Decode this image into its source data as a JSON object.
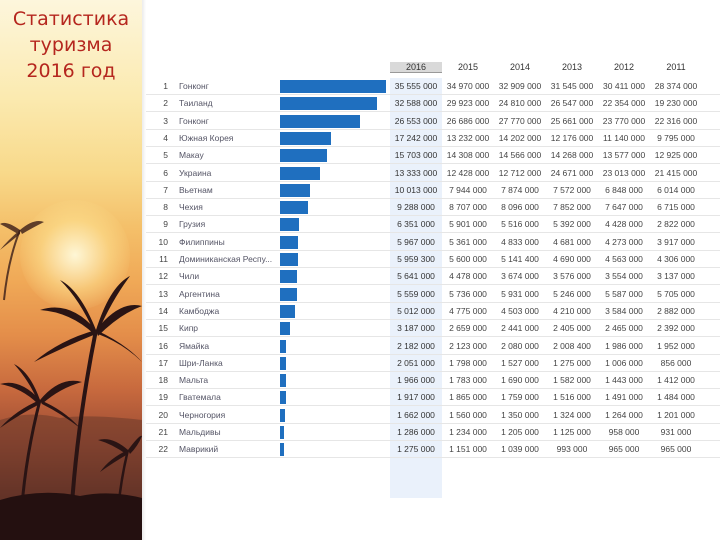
{
  "slide": {
    "title_lines": [
      "Статистика",
      "туризма",
      "2016 год"
    ]
  },
  "colors": {
    "title": "#b5261e",
    "bar": "#1f6fbf",
    "highlight_column": "#eaf1fb"
  },
  "table": {
    "year_headers": [
      "2016",
      "2015",
      "2014",
      "2013",
      "2012",
      "2011"
    ],
    "rows": [
      {
        "rank": "1",
        "country": "Гонконг",
        "bar_fraction": 1.0,
        "values": [
          "35 555 000",
          "34 970 000",
          "32 909 000",
          "31 545 000",
          "30 411 000",
          "28 374 000"
        ]
      },
      {
        "rank": "2",
        "country": "Таиланд",
        "bar_fraction": 0.917,
        "values": [
          "32 588 000",
          "29 923 000",
          "24 810 000",
          "26 547 000",
          "22 354 000",
          "19 230 000"
        ]
      },
      {
        "rank": "3",
        "country": "Гонконг",
        "bar_fraction": 0.756,
        "values": [
          "26 553 000",
          "26 686 000",
          "27 770 000",
          "25 661 000",
          "23 770 000",
          "22 316 000"
        ]
      },
      {
        "rank": "4",
        "country": "Южная Корея",
        "bar_fraction": 0.485,
        "values": [
          "17 242 000",
          "13 232 000",
          "14 202 000",
          "12 176 000",
          "11 140 000",
          "9 795 000"
        ]
      },
      {
        "rank": "5",
        "country": "Макау",
        "bar_fraction": 0.442,
        "values": [
          "15 703 000",
          "14 308 000",
          "14 566 000",
          "14 268 000",
          "13 577 000",
          "12 925 000"
        ]
      },
      {
        "rank": "6",
        "country": "Украина",
        "bar_fraction": 0.375,
        "values": [
          "13 333 000",
          "12 428 000",
          "12 712 000",
          "24 671 000",
          "23 013 000",
          "21 415 000"
        ]
      },
      {
        "rank": "7",
        "country": "Вьетнам",
        "bar_fraction": 0.282,
        "values": [
          "10 013 000",
          "7 944 000",
          "7 874 000",
          "7 572 000",
          "6 848 000",
          "6 014 000"
        ]
      },
      {
        "rank": "8",
        "country": "Чехия",
        "bar_fraction": 0.261,
        "values": [
          "9 288 000",
          "8 707 000",
          "8 096 000",
          "7 852 000",
          "7 647 000",
          "6 715 000"
        ]
      },
      {
        "rank": "9",
        "country": "Грузия",
        "bar_fraction": 0.179,
        "values": [
          "6 351 000",
          "5 901 000",
          "5 516 000",
          "5 392 000",
          "4 428 000",
          "2 822 000"
        ]
      },
      {
        "rank": "10",
        "country": "Филиппины",
        "bar_fraction": 0.168,
        "values": [
          "5 967 000",
          "5 361 000",
          "4 833 000",
          "4 681 000",
          "4 273 000",
          "3 917 000"
        ]
      },
      {
        "rank": "11",
        "country": "Доминиканская Респу...",
        "bar_fraction": 0.168,
        "values": [
          "5 959 300",
          "5 600 000",
          "5 141 400",
          "4 690 000",
          "4 563 000",
          "4 306 000"
        ]
      },
      {
        "rank": "12",
        "country": "Чили",
        "bar_fraction": 0.159,
        "values": [
          "5 641 000",
          "4 478 000",
          "3 674 000",
          "3 576 000",
          "3 554 000",
          "3 137 000"
        ]
      },
      {
        "rank": "13",
        "country": "Аргентина",
        "bar_fraction": 0.156,
        "values": [
          "5 559 000",
          "5 736 000",
          "5 931 000",
          "5 246 000",
          "5 587 000",
          "5 705 000"
        ]
      },
      {
        "rank": "14",
        "country": "Камбоджа",
        "bar_fraction": 0.141,
        "values": [
          "5 012 000",
          "4 775 000",
          "4 503 000",
          "4 210 000",
          "3 584 000",
          "2 882 000"
        ]
      },
      {
        "rank": "15",
        "country": "Кипр",
        "bar_fraction": 0.09,
        "values": [
          "3 187 000",
          "2 659 000",
          "2 441 000",
          "2 405 000",
          "2 465 000",
          "2 392 000"
        ]
      },
      {
        "rank": "16",
        "country": "Ямайка",
        "bar_fraction": 0.061,
        "values": [
          "2 182 000",
          "2 123 000",
          "2 080 000",
          "2 008 400",
          "1 986 000",
          "1 952 000"
        ]
      },
      {
        "rank": "17",
        "country": "Шри-Ланка",
        "bar_fraction": 0.058,
        "values": [
          "2 051 000",
          "1 798 000",
          "1 527 000",
          "1 275 000",
          "1 006 000",
          "856 000"
        ]
      },
      {
        "rank": "18",
        "country": "Мальта",
        "bar_fraction": 0.055,
        "values": [
          "1 966 000",
          "1 783 000",
          "1 690 000",
          "1 582 000",
          "1 443 000",
          "1 412 000"
        ]
      },
      {
        "rank": "19",
        "country": "Гватемала",
        "bar_fraction": 0.054,
        "values": [
          "1 917 000",
          "1 865 000",
          "1 759 000",
          "1 516 000",
          "1 491 000",
          "1 484 000"
        ]
      },
      {
        "rank": "20",
        "country": "Черногория",
        "bar_fraction": 0.047,
        "values": [
          "1 662 000",
          "1 560 000",
          "1 350 000",
          "1 324 000",
          "1 264 000",
          "1 201 000"
        ]
      },
      {
        "rank": "21",
        "country": "Мальдивы",
        "bar_fraction": 0.036,
        "values": [
          "1 286 000",
          "1 234 000",
          "1 205 000",
          "1 125 000",
          "958 000",
          "931 000"
        ]
      },
      {
        "rank": "22",
        "country": "Маврикий",
        "bar_fraction": 0.036,
        "values": [
          "1 275 000",
          "1 151 000",
          "1 039 000",
          "993 000",
          "965 000",
          "965 000"
        ]
      }
    ]
  }
}
